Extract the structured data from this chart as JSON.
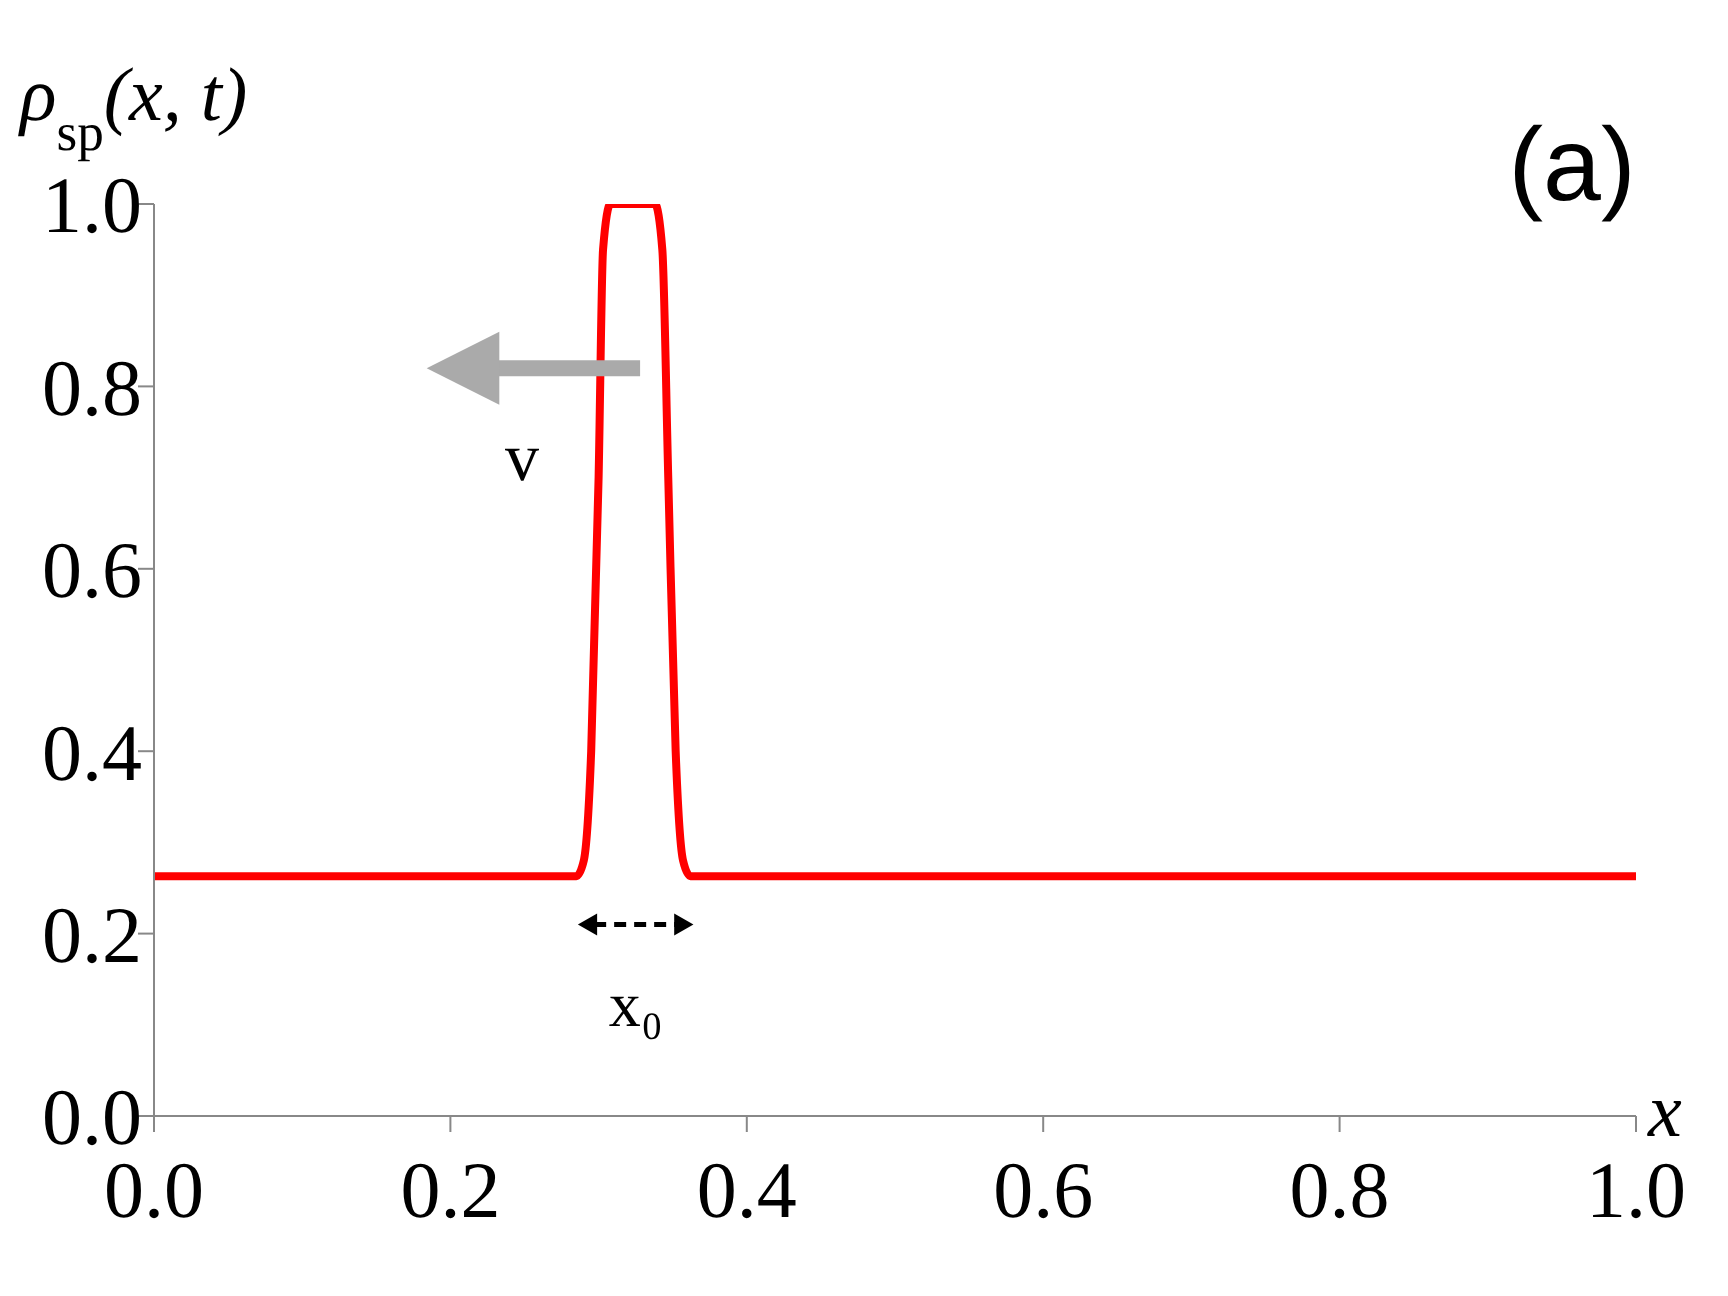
{
  "chart_data": {
    "type": "line",
    "ylabel": "ρ$_{sp}$(x, t)",
    "xlabel": "x",
    "x": [
      0,
      0.285,
      0.29,
      0.295,
      0.3,
      0.303,
      0.308,
      0.338,
      0.343,
      0.347,
      0.352,
      0.357,
      0.362,
      1
    ],
    "series": [
      {
        "color": "#ff0000",
        "values": [
          0.263,
          0.263,
          0.28,
          0.4,
          0.7,
          0.95,
          1.0,
          1.0,
          0.95,
          0.7,
          0.4,
          0.28,
          0.263,
          0.263
        ]
      }
    ],
    "xlim": [
      0,
      1
    ],
    "ylim": [
      0,
      1
    ],
    "xticks": [
      {
        "value": 0,
        "label": "0.0"
      },
      0.2,
      0.4,
      0.6,
      0.8,
      {
        "value": 1,
        "label": "1.0"
      }
    ],
    "yticks": [
      {
        "value": 0,
        "label": "0.0"
      },
      0.2,
      0.4,
      0.6,
      0.8,
      {
        "value": 1,
        "label": "1.0"
      }
    ],
    "annotations": [
      "(a)",
      "v",
      "x₀"
    ],
    "grid": false,
    "legend": false,
    "marker": "none",
    "line_style": "solid"
  }
}
